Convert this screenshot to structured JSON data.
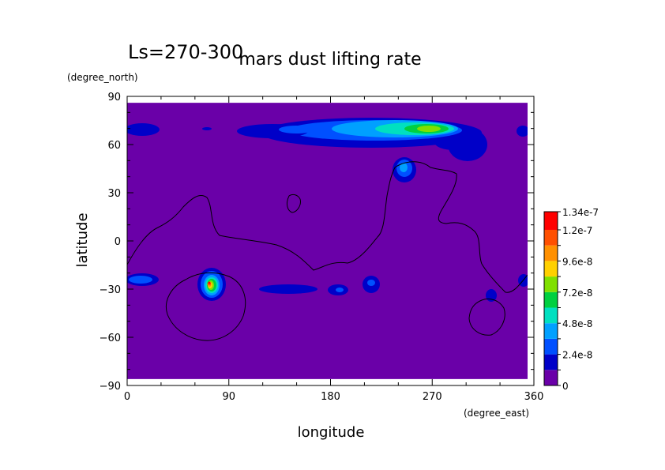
{
  "chart_data": {
    "type": "heatmap",
    "title": "mars dust lifting rate",
    "subtitle": "Ls=270-300",
    "xlabel": "longitude",
    "ylabel": "latitude",
    "x_units": "(degree_east)",
    "y_units": "(degree_north)",
    "xlim": [
      0,
      360
    ],
    "ylim": [
      -90,
      90
    ],
    "x_ticks": [
      0,
      90,
      180,
      270,
      360
    ],
    "x_tick_labels": [
      "0",
      "90",
      "180",
      "270",
      "360"
    ],
    "y_ticks": [
      -90,
      -60,
      -30,
      0,
      30,
      60,
      90
    ],
    "y_tick_labels": [
      "−90",
      "−60",
      "−30",
      "0",
      "30",
      "60",
      "90"
    ],
    "field_extent": {
      "lon": [
        0,
        355
      ],
      "lat": [
        -86,
        86
      ]
    },
    "colorbar": {
      "levels": [
        0,
        1.2e-08,
        2.4e-08,
        3.6e-08,
        4.8e-08,
        6e-08,
        7.2e-08,
        8.4e-08,
        9.6e-08,
        1.08e-07,
        1.2e-07,
        1.34e-07
      ],
      "tick_values": [
        0,
        2.4e-08,
        4.8e-08,
        7.2e-08,
        9.6e-08,
        1.2e-07,
        1.34e-07
      ],
      "tick_labels": [
        "0",
        "2.4e-8",
        "4.8e-8",
        "7.2e-8",
        "9.6e-8",
        "1.2e-7",
        "1.34e-7"
      ],
      "colors": [
        "#6a00a8",
        "#0000c8",
        "#0050ff",
        "#00a0ff",
        "#00e0c0",
        "#00d040",
        "#80e000",
        "#ffd000",
        "#ff9000",
        "#ff5000",
        "#ff0000"
      ]
    },
    "features": [
      {
        "name": "north-polar-band-east",
        "lon": 265,
        "lat": 69,
        "peak": 8.5e-08
      },
      {
        "name": "north-polar-band-mid",
        "lon": 150,
        "lat": 69,
        "peak": 3e-08
      },
      {
        "name": "north-patch-250",
        "lon": 245,
        "lat": 43,
        "peak": 4e-08
      },
      {
        "name": "hellas-region",
        "lon": 72,
        "lat": -28,
        "peak": 1.3e-07
      },
      {
        "name": "south-band-150",
        "lon": 150,
        "lat": -30,
        "peak": 1.3e-08
      },
      {
        "name": "south-patch-190",
        "lon": 190,
        "lat": -31,
        "peak": 2e-08
      },
      {
        "name": "south-patch-220",
        "lon": 218,
        "lat": -27,
        "peak": 2.2e-08
      },
      {
        "name": "south-patch-325",
        "lon": 323,
        "lat": -33,
        "peak": 1.5e-08
      },
      {
        "name": "west-edge-patch",
        "lon": 10,
        "lat": -24,
        "peak": 3e-08
      }
    ]
  }
}
